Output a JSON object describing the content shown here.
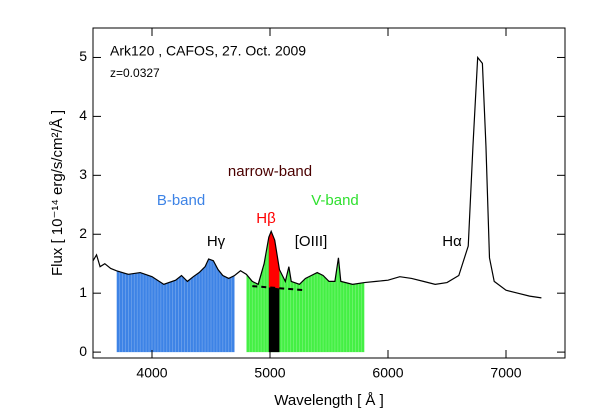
{
  "chart_data": {
    "type": "line",
    "title": "Ark120 , CAFOS, 27. Oct. 2009",
    "subtitle": "z=0.0327",
    "x_label": "Wavelength [ Å ]",
    "y_label": "Flux  [ 10⁻¹⁴ erg/s/cm²/Å ]",
    "xlim": [
      3500,
      7500
    ],
    "ylim": [
      -0.1,
      5.5
    ],
    "xticks": [
      4000,
      5000,
      6000,
      7000
    ],
    "yticks": [
      0,
      1,
      2,
      3,
      4,
      5
    ],
    "color": "#000000",
    "x": [
      3500,
      3530,
      3560,
      3600,
      3650,
      3700,
      3800,
      3900,
      4000,
      4100,
      4200,
      4250,
      4300,
      4350,
      4400,
      4450,
      4480,
      4520,
      4560,
      4600,
      4650,
      4700,
      4750,
      4800,
      4850,
      4900,
      4950,
      4990,
      5010,
      5040,
      5080,
      5130,
      5160,
      5180,
      5250,
      5300,
      5350,
      5400,
      5450,
      5500,
      5550,
      5580,
      5600,
      5700,
      5800,
      5900,
      6000,
      6100,
      6200,
      6300,
      6400,
      6500,
      6600,
      6680,
      6720,
      6760,
      6800,
      6830,
      6860,
      6900,
      7000,
      7100,
      7200,
      7300
    ],
    "values": [
      1.55,
      1.65,
      1.45,
      1.5,
      1.42,
      1.38,
      1.32,
      1.35,
      1.28,
      1.15,
      1.22,
      1.3,
      1.2,
      1.28,
      1.35,
      1.45,
      1.58,
      1.55,
      1.4,
      1.3,
      1.25,
      1.3,
      1.38,
      1.32,
      1.2,
      1.15,
      1.5,
      1.95,
      2.05,
      1.9,
      1.4,
      1.2,
      1.45,
      1.2,
      1.15,
      1.25,
      1.3,
      1.35,
      1.3,
      1.2,
      1.2,
      1.6,
      1.2,
      1.15,
      1.18,
      1.2,
      1.22,
      1.28,
      1.25,
      1.2,
      1.15,
      1.18,
      1.3,
      1.8,
      3.5,
      5.0,
      4.9,
      3.5,
      1.6,
      1.2,
      1.05,
      1.0,
      0.95,
      0.92
    ],
    "bands": [
      {
        "name": "B-band",
        "color": "#3d83e6",
        "range": [
          3700,
          4700
        ]
      },
      {
        "name": "V-band",
        "color": "#44f044",
        "range": [
          4800,
          5800
        ]
      }
    ],
    "narrow_band": {
      "name": "narrow-band",
      "color": "#000000",
      "range": [
        4990,
        5080
      ],
      "line_name": "Hβ",
      "line_color": "#ff0000"
    },
    "continuum": {
      "x": [
        4850,
        5300
      ],
      "values": [
        1.12,
        1.05
      ]
    },
    "annotations": [
      "Hγ",
      "[OIII]",
      "Hα"
    ]
  }
}
